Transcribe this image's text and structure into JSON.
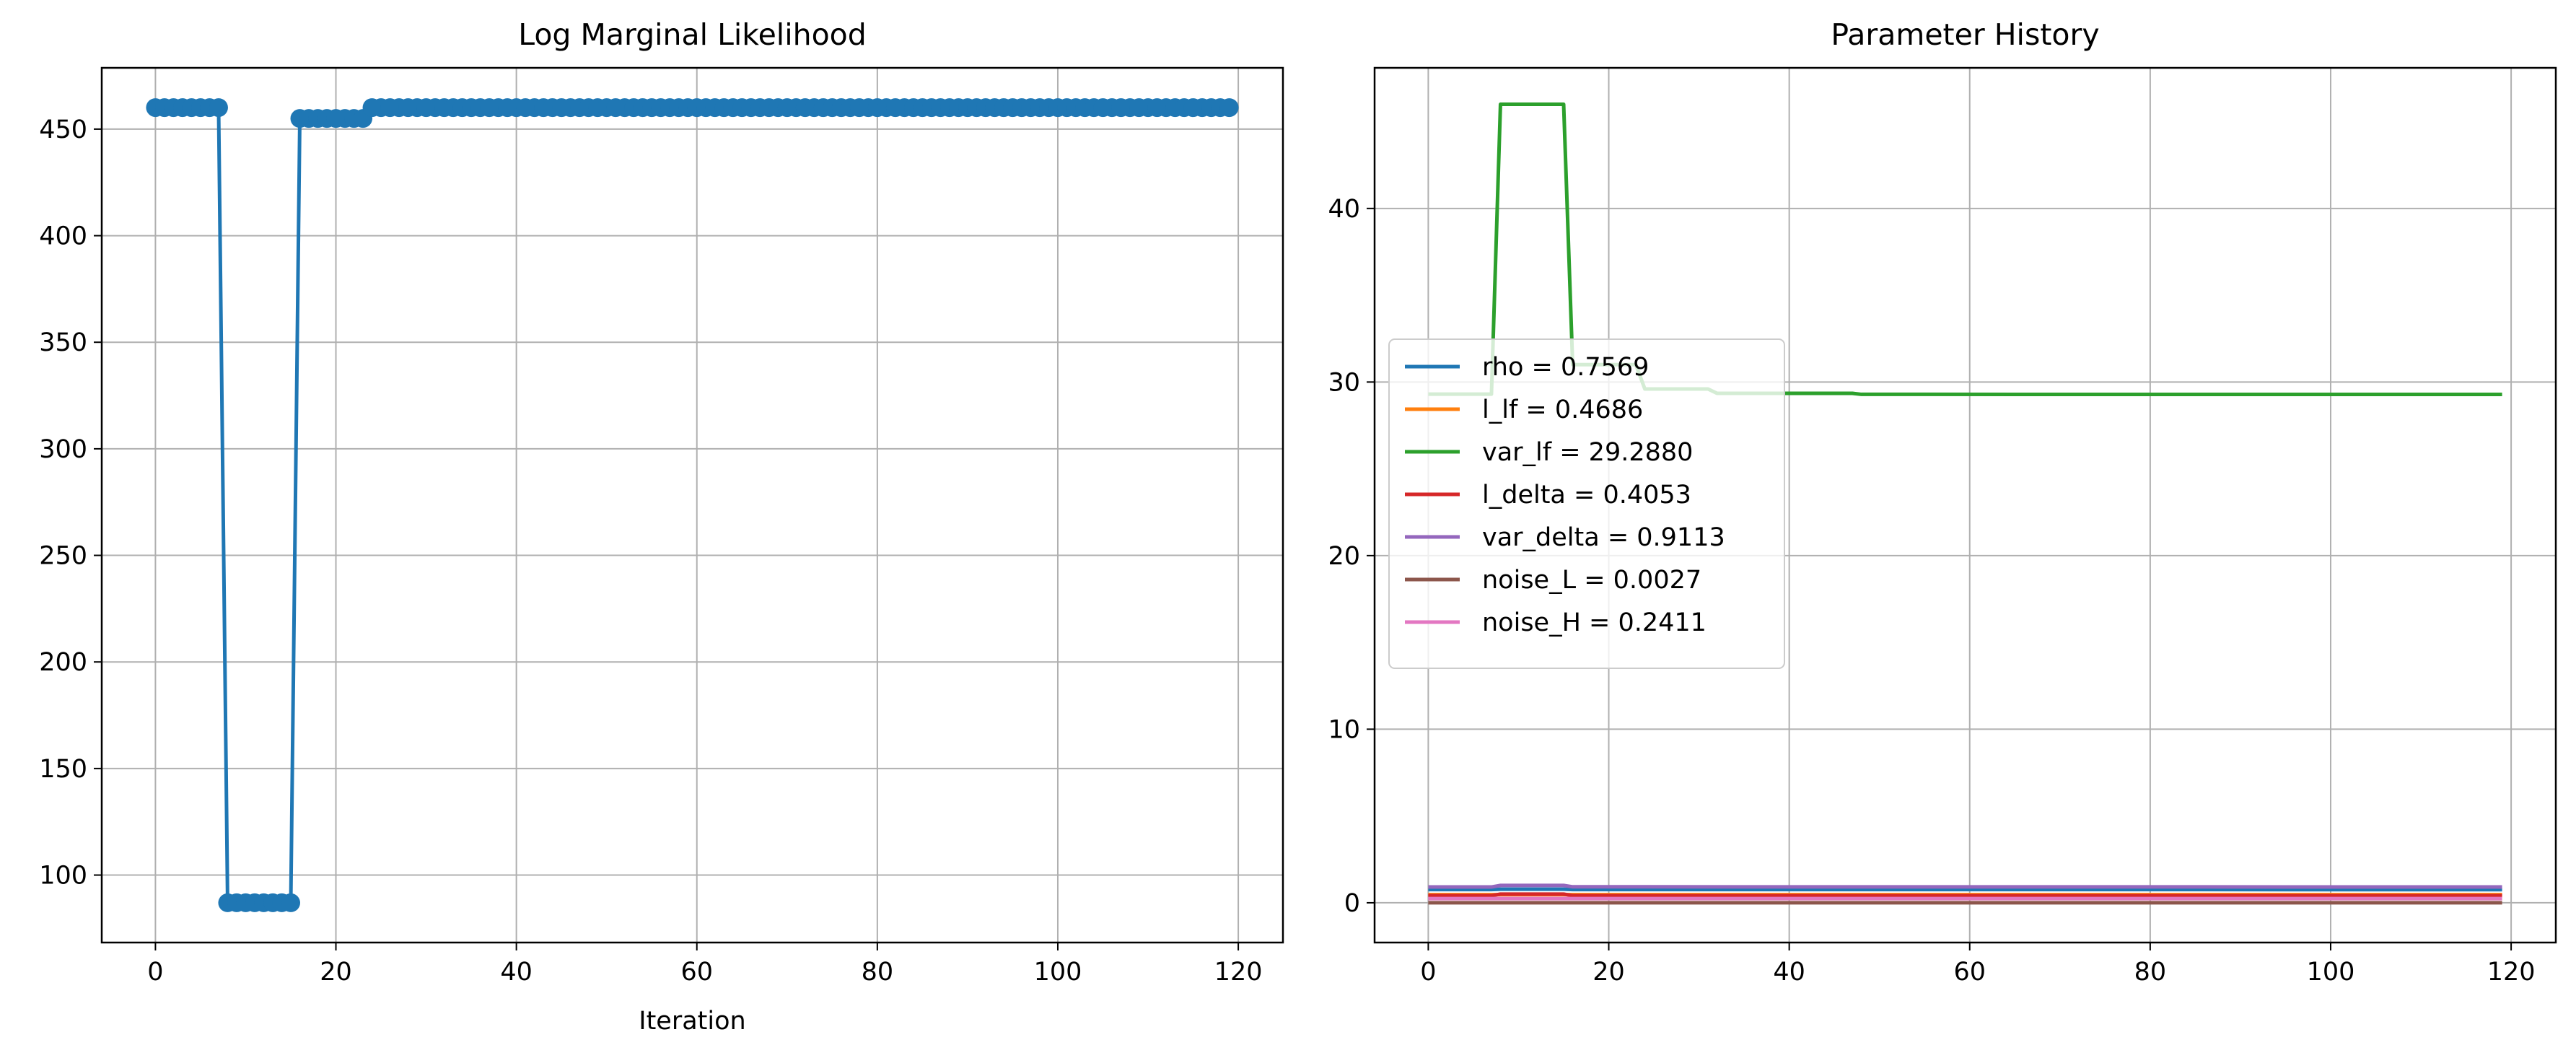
{
  "chart_data": [
    {
      "type": "line",
      "title": "Log Marginal Likelihood",
      "xlabel": "Iteration",
      "ylabel": "",
      "xlim": [
        -5.95,
        124.95
      ],
      "ylim": [
        68.35,
        478.75
      ],
      "xticks": [
        0,
        20,
        40,
        60,
        80,
        100,
        120
      ],
      "yticks": [
        100,
        150,
        200,
        250,
        300,
        350,
        400,
        450
      ],
      "grid": true,
      "markers": true,
      "series": [
        {
          "color": "#1f77b4",
          "segments": [
            {
              "x_start": 0,
              "x_end": 7,
              "y": 460.1
            },
            {
              "x_start": 8,
              "x_end": 15,
              "y": 87.0
            },
            {
              "x_start": 16,
              "x_end": 23,
              "y": 455.0
            },
            {
              "x_start": 24,
              "x_end": 119,
              "y": 460.1
            }
          ]
        }
      ]
    },
    {
      "type": "line",
      "title": "Parameter History",
      "xlabel": "",
      "ylabel": "",
      "xlim": [
        -5.95,
        124.95
      ],
      "ylim": [
        -2.29,
        48.1
      ],
      "xticks": [
        0,
        20,
        40,
        60,
        80,
        100,
        120
      ],
      "yticks": [
        0,
        10,
        20,
        30,
        40
      ],
      "grid": true,
      "legend": "center-left",
      "series": [
        {
          "name": "rho = 0.7569",
          "color": "#1f77b4",
          "points": [
            [
              0,
              0.76
            ],
            [
              7,
              0.76
            ],
            [
              8,
              0.78
            ],
            [
              15,
              0.78
            ],
            [
              16,
              0.76
            ],
            [
              119,
              0.7569
            ]
          ]
        },
        {
          "name": "l_lf = 0.4686",
          "color": "#ff7f0e",
          "points": [
            [
              0,
              0.47
            ],
            [
              119,
              0.4686
            ]
          ]
        },
        {
          "name": "var_lf = 29.2880",
          "color": "#2ca02c",
          "points": [
            [
              0,
              29.3
            ],
            [
              7,
              29.3
            ],
            [
              8,
              46.0
            ],
            [
              15,
              46.0
            ],
            [
              16,
              31.0
            ],
            [
              23,
              31.0
            ],
            [
              24,
              29.6
            ],
            [
              31,
              29.6
            ],
            [
              32,
              29.35
            ],
            [
              47,
              29.35
            ],
            [
              48,
              29.29
            ],
            [
              119,
              29.288
            ]
          ]
        },
        {
          "name": "l_delta = 0.4053",
          "color": "#d62728",
          "points": [
            [
              0,
              0.41
            ],
            [
              7,
              0.41
            ],
            [
              8,
              0.5
            ],
            [
              15,
              0.5
            ],
            [
              16,
              0.41
            ],
            [
              119,
              0.4053
            ]
          ]
        },
        {
          "name": "var_delta = 0.9113",
          "color": "#9467bd",
          "points": [
            [
              0,
              0.91
            ],
            [
              7,
              0.91
            ],
            [
              8,
              1.0
            ],
            [
              15,
              1.0
            ],
            [
              16,
              0.92
            ],
            [
              119,
              0.9113
            ]
          ]
        },
        {
          "name": "noise_L = 0.0027",
          "color": "#8c564b",
          "points": [
            [
              0,
              0.003
            ],
            [
              119,
              0.0027
            ]
          ]
        },
        {
          "name": "noise_H = 0.2411",
          "color": "#e377c2",
          "points": [
            [
              0,
              0.24
            ],
            [
              119,
              0.2411
            ]
          ]
        }
      ]
    }
  ]
}
